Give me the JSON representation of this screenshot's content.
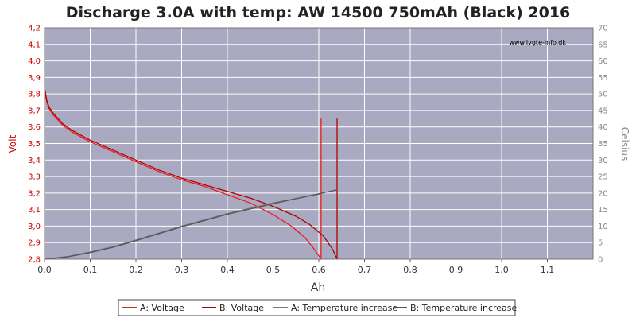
{
  "chart_data": {
    "type": "line",
    "title": "Discharge 3.0A with temp: AW 14500 750mAh (Black) 2016",
    "watermark": "www.lygte-info.dk",
    "xlabel": "Ah",
    "ylabel_left": "Volt",
    "ylabel_right": "Celsius",
    "xlim": [
      0,
      1.2
    ],
    "ylim_left": [
      2.8,
      4.2
    ],
    "ylim_right": [
      0,
      70
    ],
    "x_ticks": [
      "0,0",
      "0,1",
      "0,2",
      "0,3",
      "0,4",
      "0,5",
      "0,6",
      "0,7",
      "0,8",
      "0,9",
      "1,0",
      "1,1"
    ],
    "y_left_ticks": [
      "2,8",
      "2,9",
      "3,0",
      "3,1",
      "3,2",
      "3,3",
      "3,4",
      "3,5",
      "3,6",
      "3,7",
      "3,8",
      "3,9",
      "4,0",
      "4,1",
      "4,2"
    ],
    "y_right_ticks": [
      "0",
      "5",
      "10",
      "15",
      "20",
      "25",
      "30",
      "35",
      "40",
      "45",
      "50",
      "55",
      "60",
      "65",
      "70"
    ],
    "grid": true,
    "legend_position": "bottom",
    "colors": {
      "plot_bg": "#a9a9c1",
      "grid": "#ffffff",
      "voltage_a": "#e8201e",
      "voltage_b": "#b30000",
      "temp_a": "#7a7a7a",
      "temp_b": "#555555"
    },
    "series": [
      {
        "name": "A: Voltage",
        "axis": "left",
        "x": [
          0,
          0.005,
          0.01,
          0.02,
          0.04,
          0.06,
          0.1,
          0.15,
          0.2,
          0.25,
          0.3,
          0.35,
          0.4,
          0.45,
          0.5,
          0.54,
          0.57,
          0.59,
          0.6,
          0.605,
          0.605
        ],
        "y": [
          3.82,
          3.75,
          3.71,
          3.67,
          3.61,
          3.57,
          3.51,
          3.45,
          3.39,
          3.33,
          3.28,
          3.24,
          3.19,
          3.14,
          3.07,
          3.0,
          2.93,
          2.86,
          2.82,
          2.8,
          3.65
        ]
      },
      {
        "name": "B: Voltage",
        "axis": "left",
        "x": [
          0,
          0.005,
          0.01,
          0.02,
          0.04,
          0.06,
          0.1,
          0.15,
          0.2,
          0.25,
          0.3,
          0.35,
          0.4,
          0.45,
          0.5,
          0.55,
          0.58,
          0.61,
          0.63,
          0.64,
          0.64
        ],
        "y": [
          3.84,
          3.76,
          3.72,
          3.68,
          3.62,
          3.58,
          3.52,
          3.46,
          3.4,
          3.34,
          3.29,
          3.25,
          3.21,
          3.17,
          3.12,
          3.06,
          3.01,
          2.94,
          2.86,
          2.8,
          3.65
        ]
      },
      {
        "name": "A: Temperature increase",
        "axis": "right",
        "x": [
          0,
          0.05,
          0.1,
          0.15,
          0.2,
          0.3,
          0.4,
          0.5,
          0.605
        ],
        "y": [
          0,
          0.8,
          2.2,
          3.8,
          5.8,
          10.0,
          13.8,
          17.0,
          19.8
        ]
      },
      {
        "name": "B: Temperature increase",
        "axis": "right",
        "x": [
          0,
          0.05,
          0.1,
          0.15,
          0.2,
          0.3,
          0.4,
          0.5,
          0.6,
          0.64
        ],
        "y": [
          0,
          0.7,
          2.0,
          3.6,
          5.6,
          9.8,
          13.6,
          16.8,
          19.8,
          21.0
        ]
      }
    ]
  }
}
